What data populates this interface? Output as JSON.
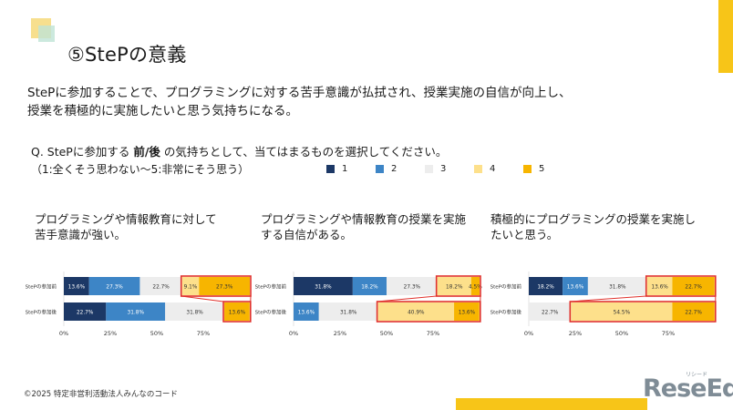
{
  "slide": {
    "title": "⑤StePの意義",
    "lead_line1": "StePに参加することで、プログラミングに対する苦手意識が払拭され、授業実施の自信が向上し、",
    "lead_line2": "授業を積極的に実施したいと思う気持ちになる。",
    "question_pre": "Q. StePに参加する",
    "question_bold": "前/後",
    "question_post": "の気持ちとして、当てはまるものを選択してください。",
    "scale_note": "（1:全くそう思わない～5:非常にそう思う）",
    "footer": "©2025 特定非営利活動法人みんなのコード",
    "logo_text": "ReseEd",
    "logo_sub": "リシード"
  },
  "legend": [
    {
      "label": "1",
      "color": "#1c3866"
    },
    {
      "label": "2",
      "color": "#3d85c6"
    },
    {
      "label": "3",
      "color": "#ededed"
    },
    {
      "label": "4",
      "color": "#fde08b"
    },
    {
      "label": "5",
      "color": "#f7b500"
    }
  ],
  "colors": {
    "highlight_border": "#e0312b",
    "axis_text": "#333333",
    "label_dark": "#ffffff",
    "label_light": "#333333"
  },
  "chart_data": [
    {
      "type": "bar",
      "orientation": "horizontal-stacked-percent",
      "title_line1": "プログラミングや情報教育に対して",
      "title_line2": "苦手意識が強い。",
      "categories": [
        "StePの参加前",
        "StePの参加後"
      ],
      "series": [
        {
          "name": "1",
          "values": [
            13.6,
            22.7
          ]
        },
        {
          "name": "2",
          "values": [
            27.3,
            31.8
          ]
        },
        {
          "name": "3",
          "values": [
            22.7,
            31.8
          ]
        },
        {
          "name": "4",
          "values": [
            9.1,
            0
          ]
        },
        {
          "name": "5",
          "values": [
            27.3,
            13.6
          ]
        }
      ],
      "value_labels": [
        [
          "13.6%",
          "27.3%",
          "22.7%",
          "9.1%",
          "27.3%"
        ],
        [
          "22.7%",
          "31.8%",
          "31.8%",
          "",
          "13.6%"
        ]
      ],
      "highlight": [
        {
          "row": 0,
          "from": 3,
          "to": 4
        },
        {
          "row": 1,
          "from": 4,
          "to": 4
        }
      ],
      "xticks": [
        "0%",
        "25%",
        "50%",
        "75%"
      ],
      "xlim": [
        0,
        100
      ]
    },
    {
      "type": "bar",
      "orientation": "horizontal-stacked-percent",
      "title_line1": "プログラミングや情報教育の授業を実施",
      "title_line2": "する自信がある。",
      "categories": [
        "StePの参加前",
        "StePの参加後"
      ],
      "series": [
        {
          "name": "1",
          "values": [
            31.8,
            0
          ]
        },
        {
          "name": "2",
          "values": [
            18.2,
            13.6
          ]
        },
        {
          "name": "3",
          "values": [
            27.3,
            31.8
          ]
        },
        {
          "name": "4",
          "values": [
            18.2,
            40.9
          ]
        },
        {
          "name": "5",
          "values": [
            4.5,
            13.6
          ]
        }
      ],
      "value_labels": [
        [
          "31.8%",
          "18.2%",
          "27.3%",
          "18.2%",
          "4.5%"
        ],
        [
          "",
          "13.6%",
          "31.8%",
          "40.9%",
          "13.6%"
        ]
      ],
      "highlight": [
        {
          "row": 0,
          "from": 3,
          "to": 4
        },
        {
          "row": 1,
          "from": 3,
          "to": 4
        }
      ],
      "xticks": [
        "0%",
        "25%",
        "50%",
        "75%"
      ],
      "xlim": [
        0,
        100
      ]
    },
    {
      "type": "bar",
      "orientation": "horizontal-stacked-percent",
      "title_line1": "積極的にプログラミングの授業を実施し",
      "title_line2": "たいと思う。",
      "categories": [
        "StePの参加前",
        "StePの参加後"
      ],
      "series": [
        {
          "name": "1",
          "values": [
            18.2,
            0
          ]
        },
        {
          "name": "2",
          "values": [
            13.6,
            0
          ]
        },
        {
          "name": "3",
          "values": [
            31.8,
            22.7
          ]
        },
        {
          "name": "4",
          "values": [
            13.6,
            54.5
          ]
        },
        {
          "name": "5",
          "values": [
            22.7,
            22.7
          ]
        }
      ],
      "value_labels": [
        [
          "18.2%",
          "13.6%",
          "31.8%",
          "13.6%",
          "22.7%"
        ],
        [
          "",
          "",
          "22.7%",
          "54.5%",
          "22.7%"
        ]
      ],
      "highlight": [
        {
          "row": 0,
          "from": 3,
          "to": 4
        },
        {
          "row": 1,
          "from": 3,
          "to": 4
        }
      ],
      "xticks": [
        "0%",
        "25%",
        "50%",
        "75%"
      ],
      "xlim": [
        0,
        100
      ]
    }
  ]
}
